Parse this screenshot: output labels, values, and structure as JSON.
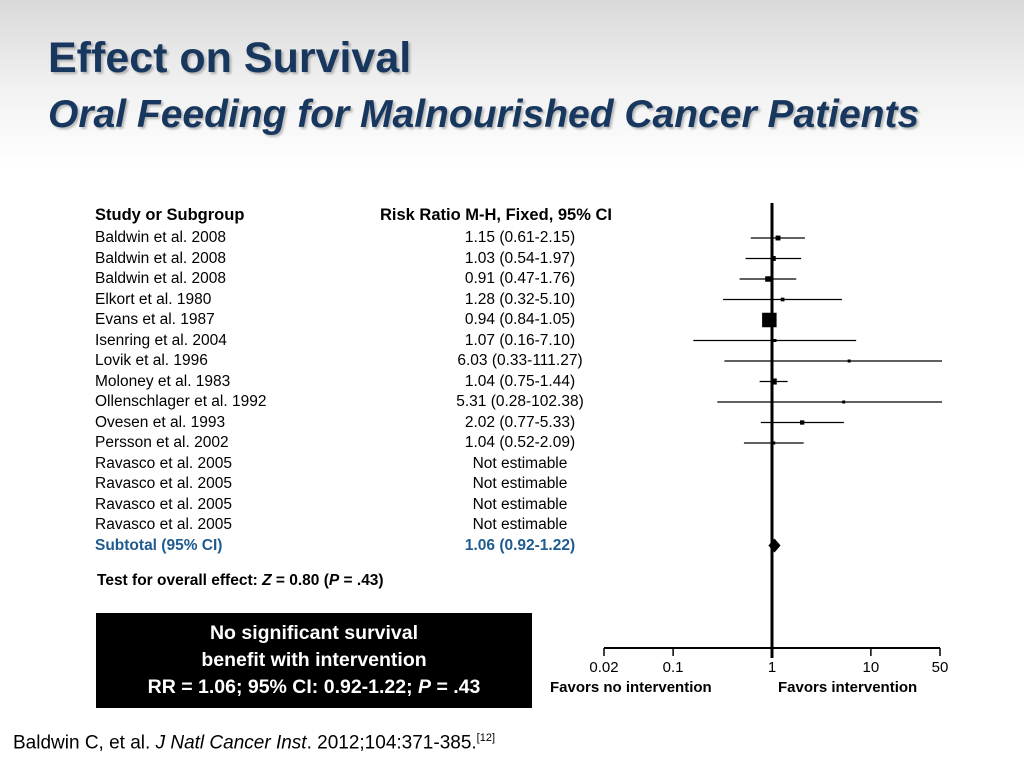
{
  "title": "Effect on Survival",
  "subtitle": "Oral Feeding for Malnourished Cancer Patients",
  "callout": {
    "line1": "No significant survival",
    "line2": "benefit with intervention",
    "line3_pre": "RR = 1.06; 95% CI: 0.92-1.22; ",
    "line3_p": "P",
    "line3_post": " = .43"
  },
  "test_effect": {
    "prefix": "Test for overall effect: ",
    "z": "Z",
    "mid": " = 0.80 (",
    "p": "P",
    "suffix": " = .43)"
  },
  "citation": {
    "authors": "Baldwin C, et al. ",
    "journal": "J Natl Cancer Inst",
    "details": ". 2012;104:371-385.",
    "ref": "[12]"
  },
  "colors": {
    "title": "#17375e",
    "subtotal": "#1f5b8f"
  },
  "chart_data": {
    "type": "forest",
    "column_headers": {
      "study": "Study or Subgroup",
      "effect": "Risk Ratio M-H, Fixed, 95% CI"
    },
    "x_scale": "log",
    "xlim": [
      0.02,
      50
    ],
    "x_ticks": [
      {
        "value": 0.02,
        "label": "0.02"
      },
      {
        "value": 0.1,
        "label": "0.1"
      },
      {
        "value": 1,
        "label": "1"
      },
      {
        "value": 10,
        "label": "10"
      },
      {
        "value": 50,
        "label": "50"
      }
    ],
    "favors_left": "Favors no intervention",
    "favors_right": "Favors intervention",
    "studies": [
      {
        "study": "Baldwin et al. 2008",
        "ci_text": "1.15 (0.61-2.15)",
        "rr": 1.15,
        "lo": 0.61,
        "hi": 2.15,
        "weight": 2
      },
      {
        "study": "Baldwin et al. 2008",
        "ci_text": "1.03 (0.54-1.97)",
        "rr": 1.03,
        "lo": 0.54,
        "hi": 1.97,
        "weight": 2
      },
      {
        "study": "Baldwin et al. 2008",
        "ci_text": "0.91 (0.47-1.76)",
        "rr": 0.91,
        "lo": 0.47,
        "hi": 1.76,
        "weight": 2.5
      },
      {
        "study": "Elkort et al. 1980",
        "ci_text": "1.28 (0.32-5.10)",
        "rr": 1.28,
        "lo": 0.32,
        "hi": 5.1,
        "weight": 1
      },
      {
        "study": "Evans et al. 1987",
        "ci_text": "0.94 (0.84-1.05)",
        "rr": 0.94,
        "lo": 0.84,
        "hi": 1.05,
        "weight": 10
      },
      {
        "study": "Isenring et al. 2004",
        "ci_text": "1.07 (0.16-7.10)",
        "rr": 1.07,
        "lo": 0.16,
        "hi": 7.1,
        "weight": 0.3
      },
      {
        "study": "Lovik et al. 1996",
        "ci_text": "6.03 (0.33-111.27)",
        "rr": 6.03,
        "lo": 0.33,
        "hi": 111.27,
        "weight": 0.3
      },
      {
        "study": "Moloney et al. 1983",
        "ci_text": "1.04 (0.75-1.44)",
        "rr": 1.04,
        "lo": 0.75,
        "hi": 1.44,
        "weight": 3
      },
      {
        "study": "Ollenschlager et al. 1992",
        "ci_text": "5.31 (0.28-102.38)",
        "rr": 5.31,
        "lo": 0.28,
        "hi": 102.38,
        "weight": 0.3
      },
      {
        "study": "Ovesen et al. 1993",
        "ci_text": "2.02 (0.77-5.33)",
        "rr": 2.02,
        "lo": 0.77,
        "hi": 5.33,
        "weight": 1.5
      },
      {
        "study": "Persson et al. 2002",
        "ci_text": "1.04 (0.52-2.09)",
        "rr": 1.04,
        "lo": 0.52,
        "hi": 2.09,
        "weight": 0.5
      },
      {
        "study": "Ravasco et al. 2005",
        "ci_text": "Not estimable",
        "rr": null,
        "lo": null,
        "hi": null,
        "weight": 0
      },
      {
        "study": "Ravasco et al. 2005",
        "ci_text": "Not estimable",
        "rr": null,
        "lo": null,
        "hi": null,
        "weight": 0
      },
      {
        "study": "Ravasco et al. 2005",
        "ci_text": "Not estimable",
        "rr": null,
        "lo": null,
        "hi": null,
        "weight": 0
      },
      {
        "study": "Ravasco et al. 2005",
        "ci_text": "Not estimable",
        "rr": null,
        "lo": null,
        "hi": null,
        "weight": 0
      }
    ],
    "subtotal": {
      "label": "Subtotal (95% CI)",
      "ci_text": "1.06 (0.92-1.22)",
      "rr": 1.06,
      "lo": 0.92,
      "hi": 1.22
    }
  }
}
